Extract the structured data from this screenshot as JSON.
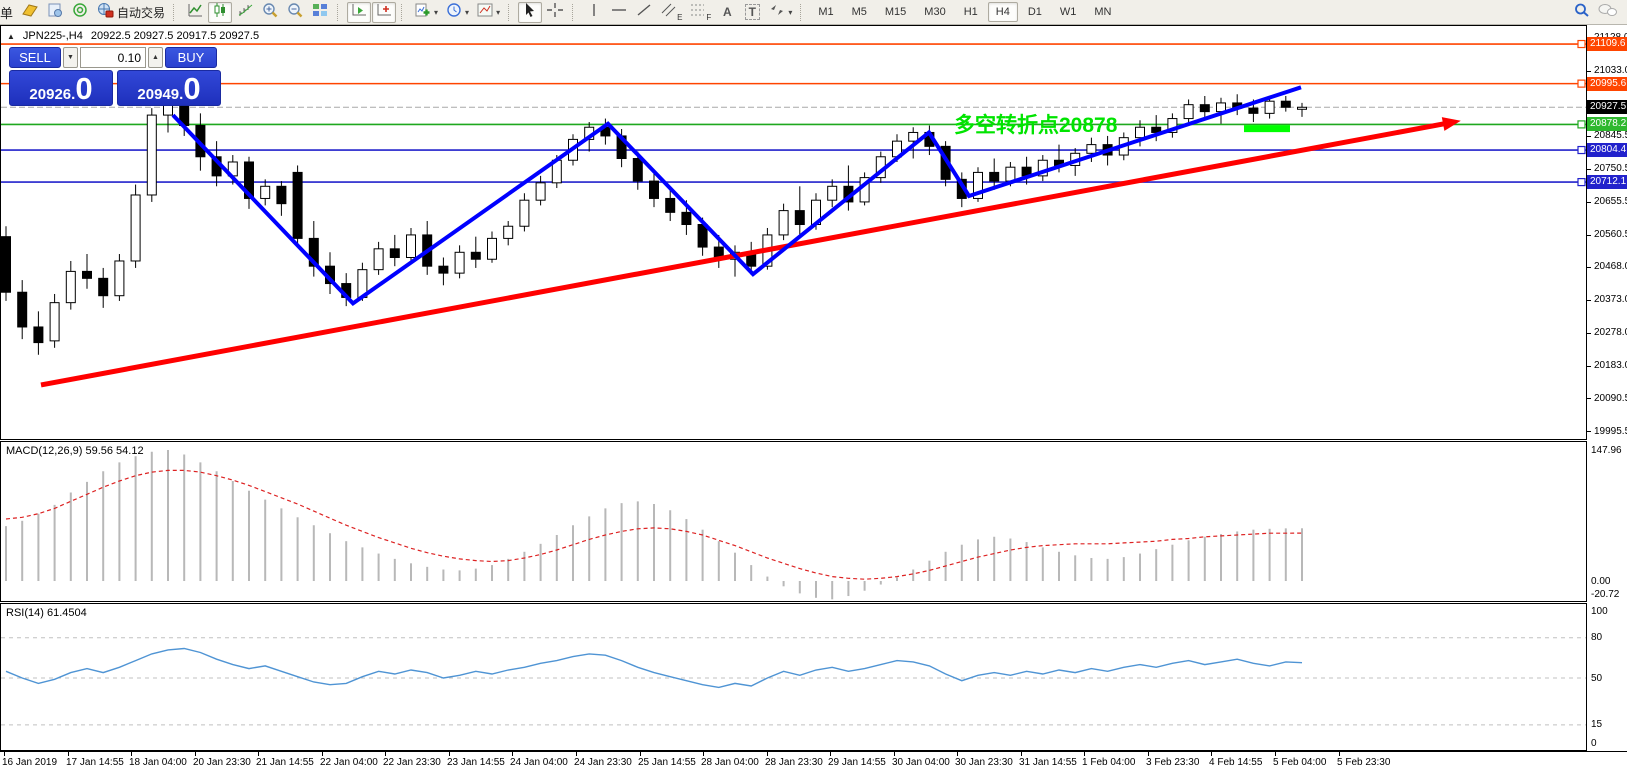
{
  "toolbar": {
    "menu_char": "单",
    "autotrade_label": "自动交易",
    "channel_letter": "E",
    "fibo_letter": "F",
    "text_tool_letter": "A",
    "label_tool_letter": "T",
    "timeframes": [
      "M1",
      "M5",
      "M15",
      "M30",
      "H1",
      "H4",
      "D1",
      "W1",
      "MN"
    ],
    "active_timeframe": "H4"
  },
  "chart": {
    "symbol_period": "JPN225-,H4",
    "ohlc_text": "20922.5 20927.5 20917.5 20927.5"
  },
  "trade_panel": {
    "sell_label": "SELL",
    "buy_label": "BUY",
    "volume": "0.10",
    "sell_price_small": "20926.",
    "sell_price_big": "0",
    "buy_price_small": "20949.",
    "buy_price_big": "0",
    "panel_color": "#2b41d0"
  },
  "annotation": {
    "text": "多空转折点20878",
    "color": "#00e400"
  },
  "price_axis": {
    "ticks": [
      {
        "label": "21128.0",
        "price": 21128.0
      },
      {
        "label": "21033.0",
        "price": 21033.0
      },
      {
        "label": "20845.5",
        "price": 20845.5
      },
      {
        "label": "20750.5",
        "price": 20750.5
      },
      {
        "label": "20655.5",
        "price": 20655.5
      },
      {
        "label": "20560.5",
        "price": 20560.5
      },
      {
        "label": "20468.0",
        "price": 20468.0
      },
      {
        "label": "20373.0",
        "price": 20373.0
      },
      {
        "label": "20278.0",
        "price": 20278.0
      },
      {
        "label": "20183.0",
        "price": 20183.0
      },
      {
        "label": "20090.5",
        "price": 20090.5
      },
      {
        "label": "19995.5",
        "price": 19995.5
      }
    ],
    "badges": [
      {
        "label": "21109.6",
        "price": 21109.6,
        "color": "#ff4500",
        "square": true
      },
      {
        "label": "20995.6",
        "price": 20995.6,
        "color": "#ff4500",
        "square": true
      },
      {
        "label": "20927.5",
        "price": 20927.5,
        "color": "#000000",
        "square": false
      },
      {
        "label": "20878.2",
        "price": 20878.2,
        "color": "#2eb82e",
        "square": true
      },
      {
        "label": "20804.4",
        "price": 20804.4,
        "color": "#2222cc",
        "square": true
      },
      {
        "label": "20712.1",
        "price": 20712.1,
        "color": "#2222cc",
        "square": true
      }
    ]
  },
  "indicators": {
    "macd": {
      "label": "MACD(12,26,9) 59.56 54.12",
      "axis": [
        {
          "label": "147.96",
          "v": 147.96
        },
        {
          "label": "0.00",
          "v": 0
        },
        {
          "label": "-20.72",
          "v": -20.72
        }
      ]
    },
    "rsi": {
      "label": "RSI(14) 61.4504",
      "axis": [
        {
          "label": "100",
          "v": 100
        },
        {
          "label": "80",
          "v": 80
        },
        {
          "label": "50",
          "v": 50
        },
        {
          "label": "15",
          "v": 15
        },
        {
          "label": "0",
          "v": 0
        }
      ],
      "levels": [
        80,
        50,
        15
      ]
    }
  },
  "time_axis": {
    "labels": [
      "16 Jan 2019",
      "17 Jan 14:55",
      "18 Jan 04:00",
      "20 Jan 23:30",
      "21 Jan 14:55",
      "22 Jan 04:00",
      "22 Jan 23:30",
      "23 Jan 14:55",
      "24 Jan 04:00",
      "24 Jan 23:30",
      "25 Jan 14:55",
      "28 Jan 04:00",
      "28 Jan 23:30",
      "29 Jan 14:55",
      "30 Jan 04:00",
      "30 Jan 23:30",
      "31 Jan 14:55",
      "1 Feb 04:00",
      "3 Feb 23:30",
      "4 Feb 14:55",
      "5 Feb 04:00",
      "5 Feb 23:30"
    ]
  },
  "chart_data": {
    "type": "candlestick",
    "symbol": "JPN225-",
    "period": "H4",
    "current_price": 20927.5,
    "price_range_visible": [
      19995.5,
      21128.0
    ],
    "grid": false,
    "up_color": "#ffffff",
    "down_color": "#000000",
    "ohlc": [
      [
        20555,
        20585,
        20370,
        20395
      ],
      [
        20395,
        20430,
        20260,
        20295
      ],
      [
        20295,
        20340,
        20215,
        20250
      ],
      [
        20255,
        20390,
        20235,
        20365
      ],
      [
        20365,
        20485,
        20345,
        20455
      ],
      [
        20455,
        20505,
        20405,
        20435
      ],
      [
        20435,
        20465,
        20350,
        20385
      ],
      [
        20385,
        20505,
        20370,
        20485
      ],
      [
        20485,
        20705,
        20465,
        20675
      ],
      [
        20675,
        20925,
        20655,
        20905
      ],
      [
        20905,
        21010,
        20855,
        20960
      ],
      [
        20960,
        20990,
        20845,
        20875
      ],
      [
        20875,
        20910,
        20745,
        20785
      ],
      [
        20785,
        20830,
        20700,
        20730
      ],
      [
        20730,
        20790,
        20705,
        20770
      ],
      [
        20770,
        20785,
        20635,
        20665
      ],
      [
        20665,
        20720,
        20645,
        20700
      ],
      [
        20700,
        20715,
        20615,
        20650
      ],
      [
        20740,
        20760,
        20530,
        20550
      ],
      [
        20550,
        20600,
        20440,
        20470
      ],
      [
        20470,
        20510,
        20390,
        20420
      ],
      [
        20420,
        20450,
        20355,
        20380
      ],
      [
        20380,
        20480,
        20370,
        20460
      ],
      [
        20460,
        20540,
        20445,
        20520
      ],
      [
        20520,
        20560,
        20470,
        20495
      ],
      [
        20495,
        20580,
        20480,
        20560
      ],
      [
        20560,
        20600,
        20445,
        20470
      ],
      [
        20470,
        20495,
        20415,
        20450
      ],
      [
        20450,
        20530,
        20435,
        20510
      ],
      [
        20510,
        20555,
        20465,
        20490
      ],
      [
        20490,
        20570,
        20480,
        20550
      ],
      [
        20550,
        20600,
        20530,
        20585
      ],
      [
        20585,
        20680,
        20570,
        20660
      ],
      [
        20660,
        20730,
        20645,
        20710
      ],
      [
        20710,
        20790,
        20695,
        20775
      ],
      [
        20775,
        20850,
        20760,
        20835
      ],
      [
        20835,
        20885,
        20800,
        20870
      ],
      [
        20870,
        20895,
        20820,
        20845
      ],
      [
        20845,
        20865,
        20755,
        20780
      ],
      [
        20780,
        20800,
        20690,
        20715
      ],
      [
        20715,
        20740,
        20640,
        20665
      ],
      [
        20665,
        20695,
        20600,
        20625
      ],
      [
        20625,
        20660,
        20560,
        20590
      ],
      [
        20590,
        20610,
        20500,
        20525
      ],
      [
        20525,
        20560,
        20465,
        20490
      ],
      [
        20490,
        20530,
        20440,
        20510
      ],
      [
        20510,
        20540,
        20445,
        20470
      ],
      [
        20470,
        20580,
        20460,
        20560
      ],
      [
        20560,
        20650,
        20545,
        20630
      ],
      [
        20630,
        20700,
        20560,
        20590
      ],
      [
        20590,
        20680,
        20575,
        20660
      ],
      [
        20660,
        20720,
        20640,
        20700
      ],
      [
        20700,
        20760,
        20630,
        20655
      ],
      [
        20655,
        20740,
        20645,
        20725
      ],
      [
        20725,
        20800,
        20710,
        20785
      ],
      [
        20785,
        20850,
        20770,
        20830
      ],
      [
        20830,
        20870,
        20780,
        20855
      ],
      [
        20855,
        20875,
        20790,
        20815
      ],
      [
        20815,
        20830,
        20700,
        20720
      ],
      [
        20720,
        20740,
        20640,
        20665
      ],
      [
        20665,
        20755,
        20655,
        20740
      ],
      [
        20740,
        20780,
        20690,
        20715
      ],
      [
        20715,
        20770,
        20700,
        20755
      ],
      [
        20755,
        20785,
        20705,
        20730
      ],
      [
        20730,
        20790,
        20715,
        20775
      ],
      [
        20775,
        20820,
        20740,
        20760
      ],
      [
        20760,
        20810,
        20730,
        20795
      ],
      [
        20795,
        20840,
        20770,
        20820
      ],
      [
        20820,
        20845,
        20760,
        20790
      ],
      [
        20790,
        20855,
        20775,
        20840
      ],
      [
        20840,
        20890,
        20815,
        20870
      ],
      [
        20870,
        20905,
        20830,
        20855
      ],
      [
        20855,
        20910,
        20840,
        20895
      ],
      [
        20895,
        20950,
        20875,
        20935
      ],
      [
        20935,
        20960,
        20890,
        20915
      ],
      [
        20915,
        20955,
        20880,
        20940
      ],
      [
        20940,
        20965,
        20905,
        20925
      ],
      [
        20925,
        20950,
        20885,
        20910
      ],
      [
        20910,
        20955,
        20895,
        20945
      ],
      [
        20945,
        20960,
        20915,
        20927.5
      ],
      [
        20927.5,
        20940,
        20900,
        20927.5
      ]
    ],
    "hlines": [
      {
        "price": 21109.6,
        "color": "#ff4500"
      },
      {
        "price": 20995.6,
        "color": "#ff4500"
      },
      {
        "price": 20878.2,
        "color": "#1fa81f"
      },
      {
        "price": 20804.4,
        "color": "#2222cc"
      },
      {
        "price": 20712.1,
        "color": "#2222cc"
      }
    ],
    "red_trendline": {
      "from": [
        40,
        20128
      ],
      "to": [
        1447,
        20882
      ],
      "color": "#ff0000",
      "width": 5,
      "arrow": true
    },
    "blue_zigzag": {
      "points": [
        [
          172,
          20905
        ],
        [
          352,
          20363
        ],
        [
          607,
          20880
        ],
        [
          752,
          20447
        ],
        [
          928,
          20855
        ],
        [
          968,
          20672
        ],
        [
          1300,
          20985
        ]
      ],
      "color": "#0000ff",
      "width": 4
    },
    "green_segment": {
      "from": [
        1243,
        20866
      ],
      "to": [
        1289,
        20866
      ],
      "color": "#00ff00",
      "width": 7
    },
    "macd_histogram": [
      62,
      68,
      76,
      86,
      100,
      112,
      124,
      134,
      141,
      146,
      148,
      143,
      134,
      124,
      113,
      102,
      92,
      82,
      72,
      63,
      54,
      45,
      38,
      31,
      25,
      20,
      16,
      13,
      12,
      14,
      18,
      25,
      33,
      42,
      52,
      63,
      73,
      82,
      88,
      90,
      87,
      80,
      70,
      58,
      45,
      32,
      18,
      5,
      -6,
      -14,
      -19,
      -20.7,
      -17,
      -11,
      -4,
      4,
      13,
      23,
      33,
      41,
      47,
      50,
      48,
      44,
      38,
      33,
      29,
      26,
      25,
      27,
      31,
      36,
      41,
      46,
      50,
      53,
      56,
      58,
      59,
      59.5,
      59.56
    ],
    "macd_signal": [
      70,
      72,
      76,
      82,
      90,
      98,
      106,
      113,
      119,
      123,
      125,
      125,
      123,
      119,
      114,
      108,
      101,
      94,
      87,
      79,
      71,
      63,
      56,
      49,
      43,
      37,
      32,
      28,
      25,
      23,
      22,
      23,
      26,
      30,
      35,
      41,
      47,
      52,
      56,
      59,
      60,
      59,
      56,
      52,
      46,
      40,
      33,
      26,
      20,
      14,
      9,
      5,
      3,
      2,
      3,
      5,
      8,
      12,
      17,
      22,
      27,
      31,
      35,
      38,
      40,
      41,
      42,
      42,
      42,
      43,
      44,
      45,
      47,
      48,
      50,
      51,
      52,
      53,
      54,
      54,
      54.12
    ],
    "rsi": [
      55,
      50,
      46,
      49,
      54,
      57,
      54,
      58,
      63,
      68,
      71,
      72,
      69,
      64,
      60,
      57,
      59,
      55,
      51,
      47,
      45,
      46,
      51,
      55,
      53,
      56,
      54,
      50,
      52,
      55,
      53,
      56,
      58,
      61,
      63,
      66,
      68,
      67,
      63,
      58,
      54,
      51,
      48,
      45,
      43,
      46,
      44,
      50,
      55,
      52,
      56,
      58,
      55,
      57,
      60,
      63,
      62,
      59,
      53,
      48,
      52,
      54,
      52,
      55,
      53,
      56,
      54,
      57,
      55,
      58,
      60,
      58,
      61,
      63,
      60,
      62,
      64,
      61,
      59,
      62,
      61.45
    ],
    "macd_color": "#b8b8b8",
    "macd_signal_color": "#dd2222",
    "rsi_color": "#4f94d4"
  }
}
